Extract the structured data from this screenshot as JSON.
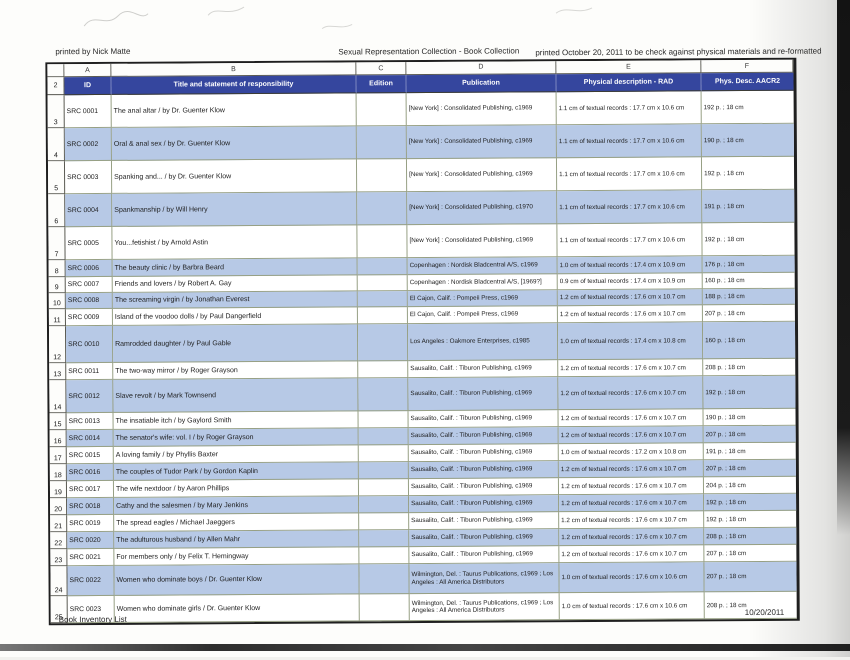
{
  "page": {
    "header_left": "printed by Nick Matte",
    "header_center": "Sexual Representation Collection - Book Collection",
    "header_right": "printed October 20, 2011 to be check against physical materials and re-formatted",
    "footer_left": "Book Inventory List",
    "footer_right": "10/20/2011"
  },
  "table": {
    "column_letters": [
      "A",
      "B",
      "C",
      "D",
      "E",
      "F"
    ],
    "header_row_number": "2",
    "headers": [
      "ID",
      "Title and statement of responsibility",
      "Edition",
      "Publication",
      "Physical description - RAD",
      "Phys. Desc. AACR2"
    ],
    "colors": {
      "header_bg": "#35469e",
      "header_text": "#ffffff",
      "shaded_row": "#b7c9e6",
      "grid_line": "#97a084"
    },
    "rows": [
      {
        "row": "3",
        "id": "SRC 0001",
        "title": "The anal altar / by Dr. Guenter Klow",
        "edition": "",
        "publication": "[New York] : Consolidated Publishing, c1969",
        "physical": "1.1 cm of textual records : 17.7 cm x 10.6 cm",
        "aacr2": "192 p. ; 18 cm"
      },
      {
        "row": "4",
        "id": "SRC 0002",
        "title": "Oral & anal sex / by Dr. Guenter Klow",
        "edition": "",
        "publication": "[New York] : Consolidated Publishing, c1969",
        "physical": "1.1 cm of textual records : 17.7 cm x 10.6 cm",
        "aacr2": "190 p. ; 18 cm"
      },
      {
        "row": "5",
        "id": "SRC 0003",
        "title": "Spanking and... / by Dr. Guenter Klow",
        "edition": "",
        "publication": "[New York] : Consolidated Publishing, c1969",
        "physical": "1.1 cm of textual records : 17.7 cm x 10.6 cm",
        "aacr2": "192 p. ; 18 cm"
      },
      {
        "row": "6",
        "id": "SRC 0004",
        "title": "Spankmanship / by Will Henry",
        "edition": "",
        "publication": "[New York] : Consolidated Publishing, c1970",
        "physical": "1.1 cm of textual records : 17.7 cm x 10.6 cm",
        "aacr2": "191 p. ; 18 cm"
      },
      {
        "row": "7",
        "id": "SRC 0005",
        "title": "You...fetishist / by Arnold Astin",
        "edition": "",
        "publication": "[New York] : Consolidated Publishing, c1969",
        "physical": "1.1 cm of textual records : 17.7 cm x 10.6 cm",
        "aacr2": "192 p. ; 18 cm"
      },
      {
        "row": "8",
        "id": "SRC 0006",
        "title": "The beauty clinic / by Barbra Beard",
        "edition": "",
        "publication": "Copenhagen : Nordisk Bladcentral A/S, c1969",
        "physical": "1.0 cm of textual records : 17.4 cm x 10.9 cm",
        "aacr2": "176 p. ; 18 cm"
      },
      {
        "row": "9",
        "id": "SRC 0007",
        "title": "Friends and lovers / by Robert A. Gay",
        "edition": "",
        "publication": "Copenhagen : Nordisk Bladcentral A/S, [1969?]",
        "physical": "0.9 cm of textual records : 17.4 cm x 10.9 cm",
        "aacr2": "160 p. ; 18 cm"
      },
      {
        "row": "10",
        "id": "SRC 0008",
        "title": "The screaming virgin / by Jonathan Everest",
        "edition": "",
        "publication": "El Cajon, Calif. : Pompeii Press, c1969",
        "physical": "1.2 cm of textual records : 17.6 cm x 10.7 cm",
        "aacr2": "188 p. ; 18 cm"
      },
      {
        "row": "11",
        "id": "SRC 0009",
        "title": "Island of the voodoo dolls / by Paul Dangerfield",
        "edition": "",
        "publication": "El Cajon, Calif. : Pompeii Press, c1969",
        "physical": "1.2 cm of textual records : 17.6 cm x 10.7 cm",
        "aacr2": "207 p. ; 18 cm"
      },
      {
        "row": "12",
        "id": "SRC 0010",
        "title": "Ramrodded daughter / by Paul Gable",
        "edition": "",
        "publication": "Los Angeles : Oakmore Enterprises, c1985",
        "physical": "1.0 cm of textual records : 17.4 cm x 10.8 cm",
        "aacr2": "160 p. ; 18 cm"
      },
      {
        "row": "13",
        "id": "SRC 0011",
        "title": "The two-way mirror / by Roger Grayson",
        "edition": "",
        "publication": "Sausalito, Calif. : Tiburon Publishing, c1969",
        "physical": "1.2 cm of textual records : 17.6 cm x 10.7 cm",
        "aacr2": "208 p. ; 18 cm"
      },
      {
        "row": "14",
        "id": "SRC 0012",
        "title": "Slave revolt / by Mark Townsend",
        "edition": "",
        "publication": "Sausalito, Calif. : Tiburon Publishing, c1969",
        "physical": "1.2 cm of textual records : 17.6 cm x 10.7 cm",
        "aacr2": "192 p. ; 18 cm"
      },
      {
        "row": "15",
        "id": "SRC 0013",
        "title": "The insatiable itch / by Gaylord Smith",
        "edition": "",
        "publication": "Sausalito, Calif. : Tiburon Publishing, c1969",
        "physical": "1.2 cm of textual records : 17.6 cm x 10.7 cm",
        "aacr2": "190 p. ; 18 cm"
      },
      {
        "row": "16",
        "id": "SRC 0014",
        "title": "The senator's wife: vol. I / by Roger Grayson",
        "edition": "",
        "publication": "Sausalito, Calif. : Tiburon Publishing, c1969",
        "physical": "1.2 cm of textual records : 17.6 cm x 10.7 cm",
        "aacr2": "207 p. ; 18 cm"
      },
      {
        "row": "17",
        "id": "SRC 0015",
        "title": "A loving family / by Phyllis Baxter",
        "edition": "",
        "publication": "Sausalito, Calif. : Tiburon Publishing, c1969",
        "physical": "1.0 cm of textual records : 17.2 cm x 10.8 cm",
        "aacr2": "191 p. ; 18 cm"
      },
      {
        "row": "18",
        "id": "SRC 0016",
        "title": "The couples of Tudor Park / by Gordon Kaplin",
        "edition": "",
        "publication": "Sausalito, Calif. : Tiburon Publishing, c1969",
        "physical": "1.2 cm of textual records : 17.6 cm x 10.7 cm",
        "aacr2": "207 p. ; 18 cm"
      },
      {
        "row": "19",
        "id": "SRC 0017",
        "title": "The wife nextdoor / by Aaron Phillips",
        "edition": "",
        "publication": "Sausalito, Calif. : Tiburon Publishing, c1969",
        "physical": "1.2 cm of textual records : 17.6 cm x 10.7 cm",
        "aacr2": "204 p. ; 18 cm"
      },
      {
        "row": "20",
        "id": "SRC 0018",
        "title": "Cathy and the salesmen / by Mary Jenkins",
        "edition": "",
        "publication": "Sausalito, Calif. : Tiburon Publishing, c1969",
        "physical": "1.2 cm of textual records : 17.6 cm x 10.7 cm",
        "aacr2": "192 p. ; 18 cm"
      },
      {
        "row": "21",
        "id": "SRC 0019",
        "title": "The spread eagles / Michael Jaeggers",
        "edition": "",
        "publication": "Sausalito, Calif. : Tiburon Publishing, c1969",
        "physical": "1.2 cm of textual records : 17.6 cm x 10.7 cm",
        "aacr2": "192 p. ; 18 cm"
      },
      {
        "row": "22",
        "id": "SRC 0020",
        "title": "The adulturous husband / by Allen Mahr",
        "edition": "",
        "publication": "Sausalito, Calif. : Tiburon Publishing, c1969",
        "physical": "1.2 cm of textual records : 17.6 cm x 10.7 cm",
        "aacr2": "208 p. ; 18 cm"
      },
      {
        "row": "23",
        "id": "SRC 0021",
        "title": "For members only / by Felix T. Hemingway",
        "edition": "",
        "publication": "Sausalito, Calif. : Tiburon Publishing, c1969",
        "physical": "1.2 cm of textual records : 17.6 cm x 10.7 cm",
        "aacr2": "207 p. ; 18 cm"
      },
      {
        "row": "24",
        "id": "SRC 0022",
        "title": "Women who dominate boys / Dr. Guenter Klow",
        "edition": "",
        "publication": "Wilmington, Del. : Taurus Publications, c1969 ; Los Angeles : All America Distributors",
        "physical": "1.0 cm of textual records : 17.6 cm x 10.6 cm",
        "aacr2": "207 p. ; 18 cm"
      },
      {
        "row": "25",
        "id": "SRC 0023",
        "title": "Women who dominate girls / Dr. Guenter Klow",
        "edition": "",
        "publication": "Wilmington, Del. : Taurus Publications, c1969 ; Los Angeles : All America Distributors",
        "physical": "1.0 cm of textual records : 17.6 cm x 10.6 cm",
        "aacr2": "208 p. ; 18 cm"
      }
    ]
  }
}
